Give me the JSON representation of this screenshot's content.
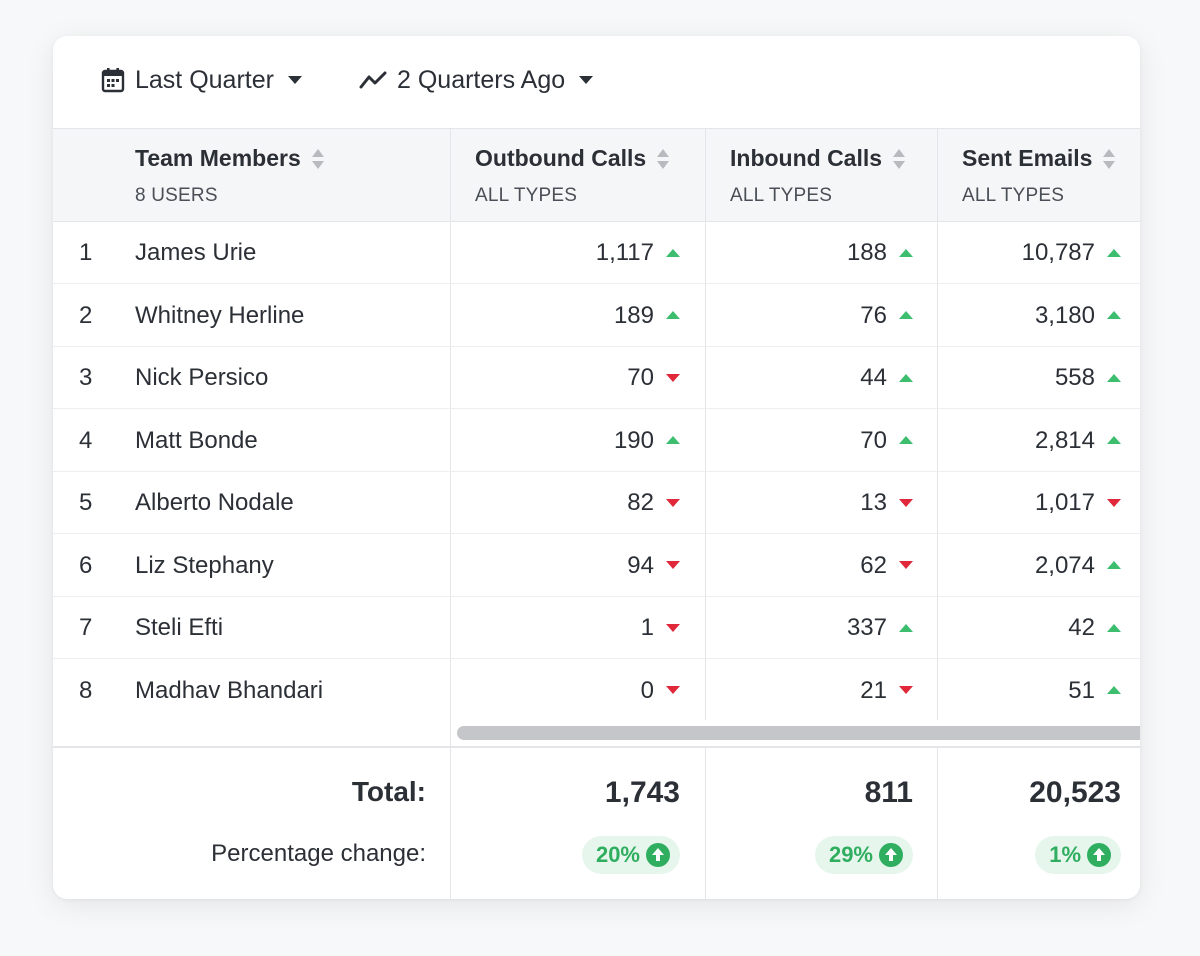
{
  "toolbar": {
    "period_label": "Last Quarter",
    "period_icon": "calendar-icon",
    "compare_label": "2 Quarters Ago",
    "compare_icon": "trend-line-icon"
  },
  "columns": [
    {
      "title": "Team Members",
      "subtitle": "8 USERS"
    },
    {
      "title": "Outbound Calls",
      "subtitle": "ALL TYPES"
    },
    {
      "title": "Inbound Calls",
      "subtitle": "ALL TYPES"
    },
    {
      "title": "Sent Emails",
      "subtitle": "ALL TYPES"
    }
  ],
  "rows": [
    {
      "num": "1",
      "name": "James Urie",
      "outbound": "1,117",
      "outbound_trend": "up",
      "inbound": "188",
      "inbound_trend": "up",
      "emails": "10,787",
      "emails_trend": "up"
    },
    {
      "num": "2",
      "name": "Whitney Herline",
      "outbound": "189",
      "outbound_trend": "up",
      "inbound": "76",
      "inbound_trend": "up",
      "emails": "3,180",
      "emails_trend": "up"
    },
    {
      "num": "3",
      "name": "Nick Persico",
      "outbound": "70",
      "outbound_trend": "down",
      "inbound": "44",
      "inbound_trend": "up",
      "emails": "558",
      "emails_trend": "up"
    },
    {
      "num": "4",
      "name": "Matt Bonde",
      "outbound": "190",
      "outbound_trend": "up",
      "inbound": "70",
      "inbound_trend": "up",
      "emails": "2,814",
      "emails_trend": "up"
    },
    {
      "num": "5",
      "name": "Alberto Nodale",
      "outbound": "82",
      "outbound_trend": "down",
      "inbound": "13",
      "inbound_trend": "down",
      "emails": "1,017",
      "emails_trend": "down"
    },
    {
      "num": "6",
      "name": "Liz Stephany",
      "outbound": "94",
      "outbound_trend": "down",
      "inbound": "62",
      "inbound_trend": "down",
      "emails": "2,074",
      "emails_trend": "up"
    },
    {
      "num": "7",
      "name": "Steli Efti",
      "outbound": "1",
      "outbound_trend": "down",
      "inbound": "337",
      "inbound_trend": "up",
      "emails": "42",
      "emails_trend": "up"
    },
    {
      "num": "8",
      "name": "Madhav Bhandari",
      "outbound": "0",
      "outbound_trend": "down",
      "inbound": "21",
      "inbound_trend": "down",
      "emails": "51",
      "emails_trend": "up"
    }
  ],
  "footer": {
    "total_label": "Total:",
    "pct_label": "Percentage change:",
    "outbound_total": "1,743",
    "inbound_total": "811",
    "emails_total": "20,523",
    "outbound_pct": "20%",
    "inbound_pct": "29%",
    "emails_pct": "1%"
  },
  "colors": {
    "up": "#3dbd6e",
    "down": "#e0283a",
    "badge_bg": "#e6f6ec",
    "badge_text": "#2fae5f"
  }
}
